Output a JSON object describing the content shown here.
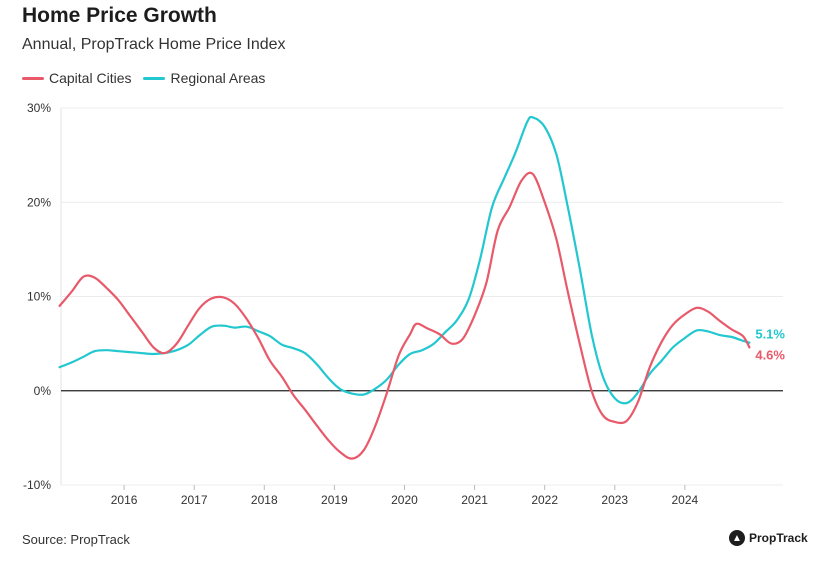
{
  "title": "Home Price Growth",
  "subtitle": "Annual, PropTrack Home Price Index",
  "source": "Source: PropTrack",
  "logo": "PropTrack",
  "colors": {
    "capital": "#e8596a",
    "regional": "#22c7cf"
  },
  "chart_data": {
    "type": "line",
    "title": "Home Price Growth",
    "subtitle": "Annual, PropTrack Home Price Index",
    "xlabel": "",
    "ylabel": "",
    "ylim": [
      -10,
      30
    ],
    "yticks": [
      -10,
      0,
      10,
      20,
      30
    ],
    "ytick_labels": [
      "-10%",
      "0%",
      "10%",
      "20%",
      "30%"
    ],
    "xlim": [
      2015.1,
      2025.4
    ],
    "xticks": [
      2016,
      2017,
      2018,
      2019,
      2020,
      2021,
      2022,
      2023,
      2024
    ],
    "xtick_labels": [
      "2016",
      "2017",
      "2018",
      "2019",
      "2020",
      "2021",
      "2022",
      "2023",
      "2024"
    ],
    "grid": "horizontal",
    "legend": "top-left",
    "series": [
      {
        "name": "Capital Cities",
        "color": "#e8596a",
        "end_label": "4.6%",
        "points": [
          [
            2015.08,
            9.0
          ],
          [
            2015.25,
            10.5
          ],
          [
            2015.42,
            12.1
          ],
          [
            2015.58,
            12.0
          ],
          [
            2015.75,
            10.9
          ],
          [
            2015.92,
            9.6
          ],
          [
            2016.08,
            8.0
          ],
          [
            2016.25,
            6.3
          ],
          [
            2016.42,
            4.6
          ],
          [
            2016.58,
            4.0
          ],
          [
            2016.75,
            5.0
          ],
          [
            2016.92,
            7.0
          ],
          [
            2017.08,
            8.8
          ],
          [
            2017.25,
            9.8
          ],
          [
            2017.42,
            9.9
          ],
          [
            2017.58,
            9.2
          ],
          [
            2017.75,
            7.6
          ],
          [
            2017.92,
            5.5
          ],
          [
            2018.08,
            3.2
          ],
          [
            2018.25,
            1.5
          ],
          [
            2018.42,
            -0.5
          ],
          [
            2018.58,
            -2.0
          ],
          [
            2018.75,
            -3.7
          ],
          [
            2018.92,
            -5.3
          ],
          [
            2019.08,
            -6.5
          ],
          [
            2019.25,
            -7.2
          ],
          [
            2019.42,
            -6.3
          ],
          [
            2019.58,
            -3.8
          ],
          [
            2019.75,
            -0.2
          ],
          [
            2019.92,
            3.8
          ],
          [
            2020.08,
            6.0
          ],
          [
            2020.17,
            7.1
          ],
          [
            2020.33,
            6.6
          ],
          [
            2020.5,
            6.0
          ],
          [
            2020.67,
            5.0
          ],
          [
            2020.83,
            5.5
          ],
          [
            2021.0,
            8.0
          ],
          [
            2021.17,
            11.5
          ],
          [
            2021.33,
            17.0
          ],
          [
            2021.5,
            19.5
          ],
          [
            2021.67,
            22.3
          ],
          [
            2021.83,
            23.0
          ],
          [
            2022.0,
            20.0
          ],
          [
            2022.17,
            16.0
          ],
          [
            2022.33,
            10.5
          ],
          [
            2022.5,
            5.0
          ],
          [
            2022.67,
            0.0
          ],
          [
            2022.83,
            -2.6
          ],
          [
            2023.0,
            -3.3
          ],
          [
            2023.17,
            -3.2
          ],
          [
            2023.33,
            -1.2
          ],
          [
            2023.5,
            2.5
          ],
          [
            2023.67,
            5.2
          ],
          [
            2023.83,
            7.0
          ],
          [
            2024.0,
            8.1
          ],
          [
            2024.17,
            8.8
          ],
          [
            2024.33,
            8.4
          ],
          [
            2024.5,
            7.4
          ],
          [
            2024.67,
            6.5
          ],
          [
            2024.83,
            5.8
          ],
          [
            2024.92,
            4.6
          ]
        ]
      },
      {
        "name": "Regional Areas",
        "color": "#22c7cf",
        "end_label": "5.1%",
        "points": [
          [
            2015.08,
            2.5
          ],
          [
            2015.25,
            3.0
          ],
          [
            2015.42,
            3.6
          ],
          [
            2015.58,
            4.2
          ],
          [
            2015.75,
            4.3
          ],
          [
            2015.92,
            4.2
          ],
          [
            2016.08,
            4.1
          ],
          [
            2016.25,
            4.0
          ],
          [
            2016.42,
            3.9
          ],
          [
            2016.58,
            4.0
          ],
          [
            2016.75,
            4.3
          ],
          [
            2016.92,
            4.9
          ],
          [
            2017.08,
            5.9
          ],
          [
            2017.25,
            6.8
          ],
          [
            2017.42,
            6.9
          ],
          [
            2017.58,
            6.7
          ],
          [
            2017.75,
            6.8
          ],
          [
            2017.92,
            6.3
          ],
          [
            2018.08,
            5.8
          ],
          [
            2018.25,
            4.9
          ],
          [
            2018.42,
            4.5
          ],
          [
            2018.58,
            4.0
          ],
          [
            2018.75,
            2.8
          ],
          [
            2018.92,
            1.3
          ],
          [
            2019.08,
            0.2
          ],
          [
            2019.25,
            -0.3
          ],
          [
            2019.42,
            -0.4
          ],
          [
            2019.58,
            0.2
          ],
          [
            2019.75,
            1.2
          ],
          [
            2019.92,
            2.8
          ],
          [
            2020.08,
            3.9
          ],
          [
            2020.25,
            4.3
          ],
          [
            2020.42,
            5.0
          ],
          [
            2020.58,
            6.2
          ],
          [
            2020.75,
            7.5
          ],
          [
            2020.92,
            9.8
          ],
          [
            2021.08,
            14.0
          ],
          [
            2021.25,
            19.5
          ],
          [
            2021.42,
            22.5
          ],
          [
            2021.58,
            25.2
          ],
          [
            2021.75,
            28.5
          ],
          [
            2021.83,
            29.0
          ],
          [
            2022.0,
            28.0
          ],
          [
            2022.17,
            25.0
          ],
          [
            2022.33,
            19.5
          ],
          [
            2022.5,
            13.0
          ],
          [
            2022.67,
            6.0
          ],
          [
            2022.83,
            1.5
          ],
          [
            2023.0,
            -0.8
          ],
          [
            2023.17,
            -1.3
          ],
          [
            2023.33,
            -0.2
          ],
          [
            2023.5,
            1.8
          ],
          [
            2023.67,
            3.2
          ],
          [
            2023.83,
            4.6
          ],
          [
            2024.0,
            5.6
          ],
          [
            2024.17,
            6.4
          ],
          [
            2024.33,
            6.3
          ],
          [
            2024.5,
            5.9
          ],
          [
            2024.67,
            5.7
          ],
          [
            2024.83,
            5.3
          ],
          [
            2024.92,
            5.1
          ]
        ]
      }
    ]
  }
}
